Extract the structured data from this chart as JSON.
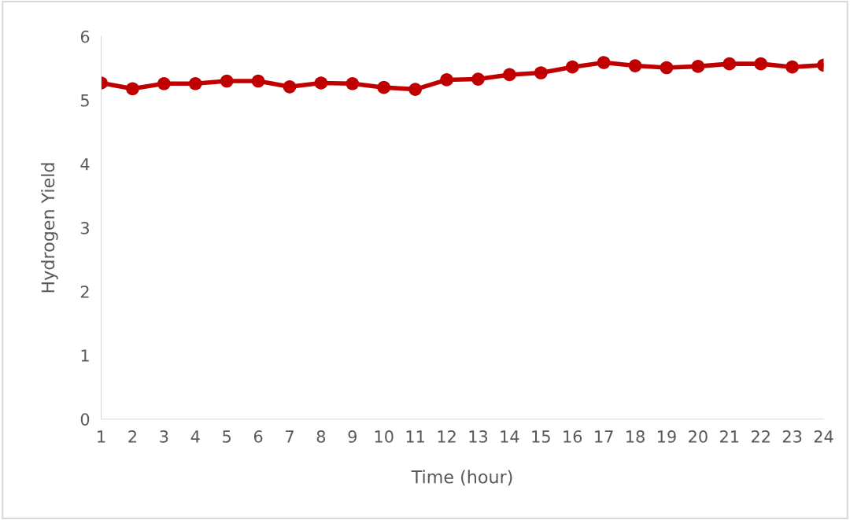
{
  "chart_data": {
    "type": "line",
    "xlabel": "Time (hour)",
    "ylabel": "Hydrogen Yield",
    "categories": [
      "1",
      "2",
      "3",
      "4",
      "5",
      "6",
      "7",
      "8",
      "9",
      "10",
      "11",
      "12",
      "13",
      "14",
      "15",
      "16",
      "17",
      "18",
      "19",
      "20",
      "21",
      "22",
      "23",
      "24"
    ],
    "series": [
      {
        "color": "#c00000",
        "values": [
          5.27,
          5.18,
          5.26,
          5.26,
          5.3,
          5.3,
          5.21,
          5.27,
          5.26,
          5.2,
          5.17,
          5.32,
          5.33,
          5.4,
          5.43,
          5.52,
          5.59,
          5.54,
          5.51,
          5.53,
          5.57,
          5.57,
          5.52,
          5.55
        ]
      }
    ],
    "ylim": [
      0,
      6
    ],
    "yticks": [
      0,
      1,
      2,
      3,
      4,
      5,
      6
    ],
    "grid": false,
    "marker": "circle",
    "line_style": "solid",
    "legend": false
  }
}
